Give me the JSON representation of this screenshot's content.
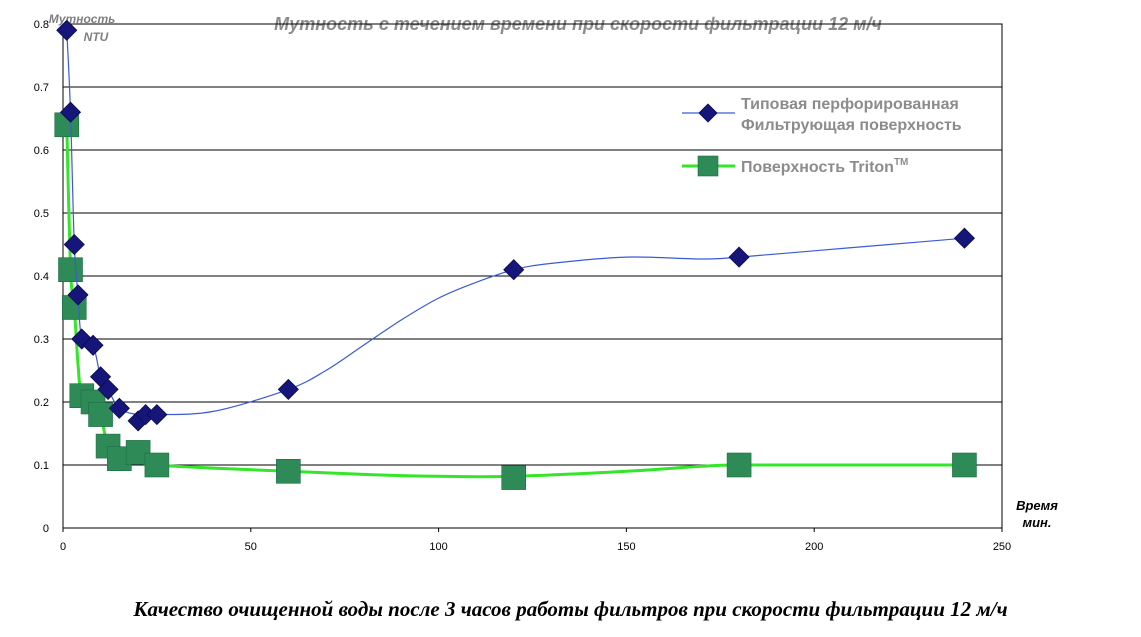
{
  "chart_data": {
    "type": "line",
    "title": "Мутность с течением времени при скорости фильтрации 12 м/ч",
    "ylabel_lines": [
      "Мутность",
      "NTU"
    ],
    "xlabel_lines": [
      "Время",
      "мин."
    ],
    "xlim": [
      0,
      250
    ],
    "ylim": [
      0,
      0.8
    ],
    "x_ticks": [
      "0",
      "50",
      "100",
      "150",
      "200",
      "250"
    ],
    "y_ticks": [
      "0",
      "0.1",
      "0.2",
      "0.3",
      "0.4",
      "0.5",
      "0.6",
      "0.7",
      "0.8"
    ],
    "grid": "horizontal",
    "legend_position": "top-right",
    "series": [
      {
        "name": "Типовая перфорированная Фильтрующая поверхность",
        "name_lines": [
          "Типовая перфорированная",
          "Фильтрующая поверхность"
        ],
        "marker": "diamond",
        "color": "#16167a",
        "line_color": "#3a5bd6",
        "points": [
          [
            1,
            0.79
          ],
          [
            2,
            0.66
          ],
          [
            3,
            0.45
          ],
          [
            4,
            0.37
          ],
          [
            5,
            0.3
          ],
          [
            8,
            0.29
          ],
          [
            10,
            0.24
          ],
          [
            12,
            0.22
          ],
          [
            15,
            0.19
          ],
          [
            20,
            0.17
          ],
          [
            22,
            0.18
          ],
          [
            25,
            0.18
          ],
          [
            60,
            0.22
          ],
          [
            120,
            0.41
          ],
          [
            180,
            0.43
          ],
          [
            240,
            0.46
          ]
        ],
        "curve": [
          [
            1,
            0.79
          ],
          [
            2,
            0.66
          ],
          [
            3,
            0.45
          ],
          [
            4,
            0.37
          ],
          [
            5,
            0.3
          ],
          [
            8,
            0.29
          ],
          [
            10,
            0.24
          ],
          [
            12,
            0.22
          ],
          [
            15,
            0.19
          ],
          [
            20,
            0.18
          ],
          [
            25,
            0.18
          ],
          [
            40,
            0.185
          ],
          [
            60,
            0.22
          ],
          [
            70,
            0.25
          ],
          [
            80,
            0.29
          ],
          [
            90,
            0.33
          ],
          [
            100,
            0.365
          ],
          [
            110,
            0.39
          ],
          [
            120,
            0.41
          ],
          [
            130,
            0.42
          ],
          [
            150,
            0.43
          ],
          [
            170,
            0.427
          ],
          [
            180,
            0.43
          ],
          [
            200,
            0.44
          ],
          [
            220,
            0.45
          ],
          [
            240,
            0.46
          ]
        ]
      },
      {
        "name": "Поверхность TritonTM",
        "name_main": "Поверхность Triton",
        "name_sup": "TM",
        "marker": "square",
        "color": "#2e8b57",
        "line_color": "#33e62a",
        "points": [
          [
            1,
            0.64
          ],
          [
            2,
            0.41
          ],
          [
            3,
            0.35
          ],
          [
            5,
            0.21
          ],
          [
            8,
            0.2
          ],
          [
            10,
            0.18
          ],
          [
            12,
            0.13
          ],
          [
            15,
            0.11
          ],
          [
            20,
            0.12
          ],
          [
            25,
            0.1
          ],
          [
            60,
            0.09
          ],
          [
            120,
            0.08
          ],
          [
            180,
            0.1
          ],
          [
            240,
            0.1
          ]
        ],
        "curve": [
          [
            1,
            0.64
          ],
          [
            2,
            0.41
          ],
          [
            3,
            0.35
          ],
          [
            4,
            0.26
          ],
          [
            5,
            0.21
          ],
          [
            8,
            0.2
          ],
          [
            10,
            0.18
          ],
          [
            12,
            0.13
          ],
          [
            15,
            0.115
          ],
          [
            20,
            0.105
          ],
          [
            25,
            0.1
          ],
          [
            40,
            0.095
          ],
          [
            60,
            0.09
          ],
          [
            80,
            0.085
          ],
          [
            100,
            0.082
          ],
          [
            120,
            0.082
          ],
          [
            150,
            0.09
          ],
          [
            170,
            0.098
          ],
          [
            180,
            0.1
          ],
          [
            210,
            0.1
          ],
          [
            240,
            0.1
          ]
        ]
      }
    ]
  },
  "caption": "Качество очищенной воды после 3 часов работы фильтров при скорости фильтрации 12 м/ч"
}
